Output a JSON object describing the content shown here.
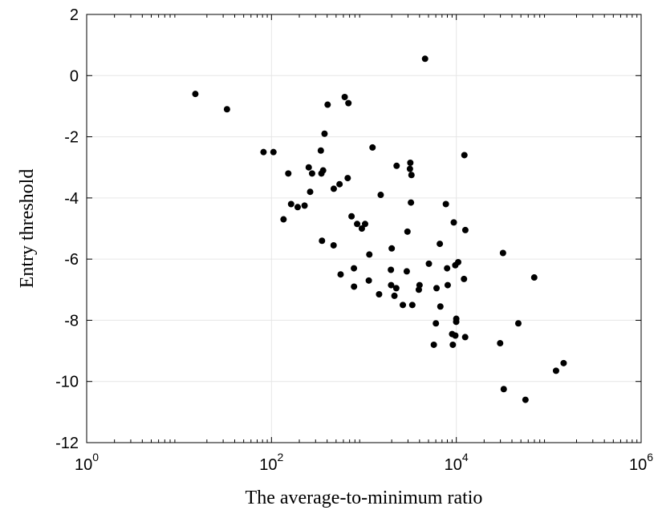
{
  "chart_data": {
    "type": "scatter",
    "xlabel": "The average-to-minimum ratio",
    "ylabel": "Entry threshold",
    "xscale": "log",
    "xlim": [
      1,
      1000000
    ],
    "ylim": [
      -12,
      2
    ],
    "xticks": [
      {
        "value": 1,
        "base": "10",
        "exp": "0"
      },
      {
        "value": 100,
        "base": "10",
        "exp": "2"
      },
      {
        "value": 10000,
        "base": "10",
        "exp": "4"
      },
      {
        "value": 1000000,
        "base": "10",
        "exp": "6"
      }
    ],
    "yticks": [
      2,
      0,
      -2,
      -4,
      -6,
      -8,
      -10,
      -12
    ],
    "ytick_labels": [
      "2",
      "0",
      "-2",
      "-4",
      "-6",
      "-8",
      "-10",
      "-12"
    ],
    "grid": true,
    "marker_color": "#000000",
    "points": [
      [
        15,
        -0.6
      ],
      [
        33,
        -1.1
      ],
      [
        82,
        -2.5
      ],
      [
        105,
        -2.5
      ],
      [
        135,
        -4.7
      ],
      [
        152,
        -3.2
      ],
      [
        163,
        -4.2
      ],
      [
        192,
        -4.3
      ],
      [
        228,
        -4.25
      ],
      [
        253,
        -3.0
      ],
      [
        262,
        -3.8
      ],
      [
        275,
        -3.2
      ],
      [
        342,
        -2.45
      ],
      [
        347,
        -3.2
      ],
      [
        352,
        -5.4
      ],
      [
        362,
        -3.1
      ],
      [
        375,
        -1.9
      ],
      [
        405,
        -0.95
      ],
      [
        470,
        -5.55
      ],
      [
        472,
        -3.7
      ],
      [
        545,
        -3.55
      ],
      [
        560,
        -6.5
      ],
      [
        620,
        -0.7
      ],
      [
        680,
        -0.9
      ],
      [
        668,
        -3.35
      ],
      [
        735,
        -4.6
      ],
      [
        780,
        -6.3
      ],
      [
        782,
        -6.9
      ],
      [
        845,
        -4.85
      ],
      [
        950,
        -5.0
      ],
      [
        1030,
        -4.85
      ],
      [
        1130,
        -6.7
      ],
      [
        1145,
        -5.85
      ],
      [
        1240,
        -2.35
      ],
      [
        1460,
        -7.15
      ],
      [
        1520,
        -3.9
      ],
      [
        1960,
        -6.35
      ],
      [
        2000,
        -5.65
      ],
      [
        1970,
        -6.85
      ],
      [
        2140,
        -7.2
      ],
      [
        2240,
        -6.95
      ],
      [
        2260,
        -2.95
      ],
      [
        2640,
        -7.5
      ],
      [
        2910,
        -6.4
      ],
      [
        2960,
        -5.1
      ],
      [
        3150,
        -3.05
      ],
      [
        3180,
        -2.85
      ],
      [
        3230,
        -4.15
      ],
      [
        3270,
        -3.25
      ],
      [
        3340,
        -7.5
      ],
      [
        3930,
        -7.0
      ],
      [
        4000,
        -6.85
      ],
      [
        4590,
        0.55
      ],
      [
        5050,
        -6.15
      ],
      [
        5710,
        -8.8
      ],
      [
        6010,
        -8.1
      ],
      [
        6110,
        -6.95
      ],
      [
        6720,
        -7.55
      ],
      [
        6630,
        -5.5
      ],
      [
        7710,
        -4.2
      ],
      [
        7950,
        -6.3
      ],
      [
        8070,
        -6.85
      ],
      [
        9010,
        -8.45
      ],
      [
        9170,
        -8.8
      ],
      [
        9390,
        -4.8
      ],
      [
        9750,
        -6.2
      ],
      [
        9760,
        -8.5
      ],
      [
        9970,
        -8.05
      ],
      [
        9990,
        -7.95
      ],
      [
        10480,
        -6.1
      ],
      [
        12110,
        -6.65
      ],
      [
        12230,
        -2.6
      ],
      [
        12520,
        -5.05
      ],
      [
        12470,
        -8.55
      ],
      [
        29800,
        -8.75
      ],
      [
        32000,
        -5.8
      ],
      [
        32600,
        -10.25
      ],
      [
        46900,
        -8.1
      ],
      [
        56000,
        -10.6
      ],
      [
        69700,
        -6.6
      ],
      [
        120000,
        -9.65
      ],
      [
        145000,
        -9.4
      ]
    ]
  }
}
